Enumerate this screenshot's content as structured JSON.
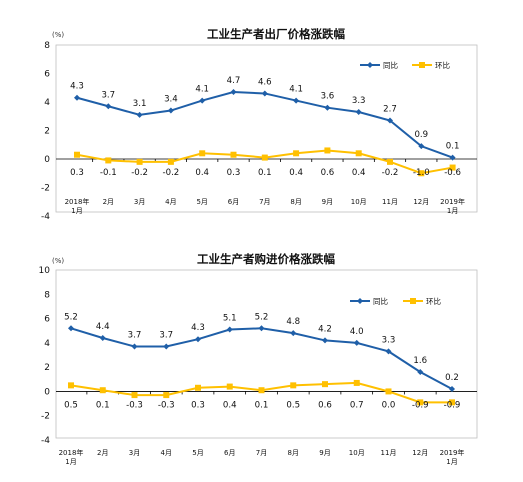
{
  "colors": {
    "yoy": "#1f5fa8",
    "mom": "#ffc000"
  },
  "chart_data": [
    {
      "type": "line",
      "title": "工业生产者出厂价格涨跌幅",
      "unit": "(%)",
      "categories": [
        [
          "2018年",
          "1月"
        ],
        [
          "2月"
        ],
        [
          "3月"
        ],
        [
          "4月"
        ],
        [
          "5月"
        ],
        [
          "6月"
        ],
        [
          "7月"
        ],
        [
          "8月"
        ],
        [
          "9月"
        ],
        [
          "10月"
        ],
        [
          "11月"
        ],
        [
          "12月"
        ],
        [
          "2019年",
          "1月"
        ]
      ],
      "ylim": [
        -4,
        8
      ],
      "yticks": [
        -4,
        -2,
        0,
        2,
        4,
        6,
        8
      ],
      "legend": "top-right",
      "series": [
        {
          "name": "同比",
          "values": [
            4.3,
            3.7,
            3.1,
            3.4,
            4.1,
            4.7,
            4.6,
            4.1,
            3.6,
            3.3,
            2.7,
            0.9,
            0.1
          ],
          "labels": [
            "4.3",
            "3.7",
            "3.1",
            "3.4",
            "4.1",
            "4.7",
            "4.6",
            "4.1",
            "3.6",
            "3.3",
            "2.7",
            "0.9",
            "0.1"
          ]
        },
        {
          "name": "环比",
          "values": [
            0.3,
            -0.1,
            -0.2,
            -0.2,
            0.4,
            0.3,
            0.1,
            0.4,
            0.6,
            0.4,
            -0.2,
            -1.0,
            -0.6
          ],
          "labels": [
            "0.3",
            "-0.1",
            "-0.2",
            "-0.2",
            "0.4",
            "0.3",
            "0.1",
            "0.4",
            "0.6",
            "0.4",
            "-0.2",
            "-1.0",
            "-0.6"
          ]
        }
      ]
    },
    {
      "type": "line",
      "title": "工业生产者购进价格涨跌幅",
      "unit": "(%)",
      "categories": [
        [
          "2018年",
          "1月"
        ],
        [
          "2月"
        ],
        [
          "3月"
        ],
        [
          "4月"
        ],
        [
          "5月"
        ],
        [
          "6月"
        ],
        [
          "7月"
        ],
        [
          "8月"
        ],
        [
          "9月"
        ],
        [
          "10月"
        ],
        [
          "11月"
        ],
        [
          "12月"
        ],
        [
          "2019年",
          "1月"
        ]
      ],
      "ylim": [
        -4,
        10
      ],
      "yticks": [
        -4,
        -2,
        0,
        2,
        4,
        6,
        8,
        10
      ],
      "legend": "top-right",
      "series": [
        {
          "name": "同比",
          "values": [
            5.2,
            4.4,
            3.7,
            3.7,
            4.3,
            5.1,
            5.2,
            4.8,
            4.2,
            4.0,
            3.3,
            1.6,
            0.2
          ],
          "labels": [
            "5.2",
            "4.4",
            "3.7",
            "3.7",
            "4.3",
            "5.1",
            "5.2",
            "4.8",
            "4.2",
            "4.0",
            "3.3",
            "1.6",
            "0.2"
          ]
        },
        {
          "name": "环比",
          "values": [
            0.5,
            0.1,
            -0.3,
            -0.3,
            0.3,
            0.4,
            0.1,
            0.5,
            0.6,
            0.7,
            0.0,
            -0.9,
            -0.9
          ],
          "labels": [
            "0.5",
            "0.1",
            "-0.3",
            "-0.3",
            "0.3",
            "0.4",
            "0.1",
            "0.5",
            "0.6",
            "0.7",
            "0.0",
            "-0.9",
            "-0.9"
          ]
        }
      ]
    }
  ]
}
